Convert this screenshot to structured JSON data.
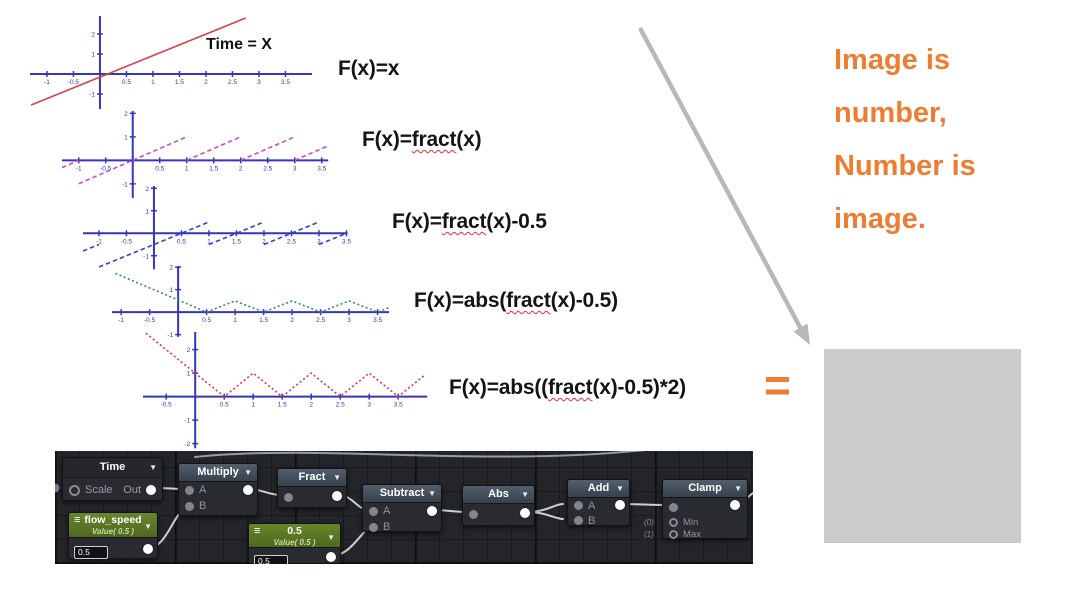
{
  "quote": {
    "lines": [
      "Image is",
      "number,",
      "Number is",
      "image."
    ]
  },
  "equals_sign": "=",
  "formulas": [
    {
      "pre": "F(x)=x",
      "fract": "",
      "post": ""
    },
    {
      "pre": "F(x)=",
      "fract": "fract",
      "post": "(x)"
    },
    {
      "pre": "F(x)=",
      "fract": "fract",
      "post": "(x)-0.5"
    },
    {
      "pre": "F(x)=abs(",
      "fract": "fract",
      "post": "(x)-0.5)"
    },
    {
      "pre": "F(x)=abs((",
      "fract": "fract",
      "post": "(x)-0.5)*2)"
    }
  ],
  "chart_data": [
    {
      "type": "line",
      "title": "F(x)=x",
      "annotation": "Time = X",
      "color": "#d04545",
      "line_style": "solid",
      "xlim": [
        -1.32,
        4.0
      ],
      "ylim": [
        -1.75,
        2.9
      ],
      "x_ticks": [
        -1,
        -0.5,
        0.5,
        1,
        1.5,
        2,
        2.5,
        3,
        3.5
      ],
      "y_ticks": [
        2,
        1,
        -1
      ],
      "segments": [
        [
          [
            -1.3,
            -1.55
          ],
          [
            2.75,
            2.8
          ]
        ]
      ]
    },
    {
      "type": "line",
      "title": "F(x)=fract(x)",
      "color": "#c44fc4",
      "line_style": "dashed",
      "xlim": [
        -1.31,
        3.62
      ],
      "ylim": [
        -1.6,
        2.1
      ],
      "x_ticks": [
        -1,
        -0.5,
        0.5,
        1,
        1.5,
        2,
        2.5,
        3,
        3.5
      ],
      "y_ticks": [
        2,
        1,
        -1
      ],
      "segments": [
        [
          [
            -1.31,
            -0.31
          ],
          [
            -1,
            0
          ]
        ],
        [
          [
            -1,
            -1
          ],
          [
            0,
            0
          ]
        ],
        [
          [
            0,
            0
          ],
          [
            1,
            1
          ]
        ],
        [
          [
            1,
            0
          ],
          [
            2,
            1
          ]
        ],
        [
          [
            2,
            0
          ],
          [
            3,
            1
          ]
        ],
        [
          [
            3,
            0
          ],
          [
            3.6,
            0.6
          ]
        ]
      ]
    },
    {
      "type": "line",
      "title": "F(x)=fract(x)-0.5",
      "color": "#3b3bd0",
      "line_style": "dashed",
      "xlim": [
        -1.29,
        3.52
      ],
      "ylim": [
        -1.6,
        2.1
      ],
      "x_ticks": [
        -1,
        -0.5,
        0.5,
        1,
        1.5,
        2,
        2.5,
        3,
        3.5
      ],
      "y_ticks": [
        2,
        1,
        -1
      ],
      "segments": [
        [
          [
            -1.29,
            -0.79
          ],
          [
            -1,
            -0.5
          ]
        ],
        [
          [
            -1,
            -1.5
          ],
          [
            1,
            0.5
          ]
        ],
        [
          [
            1,
            -0.5
          ],
          [
            2,
            0.5
          ]
        ],
        [
          [
            2,
            -0.5
          ],
          [
            3,
            0.5
          ]
        ],
        [
          [
            3,
            -0.5
          ],
          [
            3.5,
            0
          ]
        ]
      ]
    },
    {
      "type": "line",
      "title": "F(x)=abs(fract(x)-0.5)",
      "color": "#2f8f62",
      "line_style": "dotted",
      "xlim": [
        -1.16,
        3.7
      ],
      "ylim": [
        -1.1,
        2.05
      ],
      "x_ticks": [
        -1,
        -0.5,
        0.5,
        1,
        1.5,
        2,
        2.5,
        3,
        3.5
      ],
      "y_ticks": [
        2,
        1,
        -1
      ],
      "segments": [
        [
          [
            -1.1,
            1.72
          ],
          [
            0.5,
            0
          ],
          [
            1,
            0.5
          ],
          [
            1.5,
            0
          ],
          [
            2,
            0.5
          ],
          [
            2.5,
            0
          ],
          [
            3,
            0.5
          ],
          [
            3.5,
            0
          ],
          [
            3.7,
            0.2
          ]
        ]
      ]
    },
    {
      "type": "line",
      "title": "F(x)=abs((fract(x)-0.5)*2)",
      "color": "#d23b3b",
      "line_style": "dotted",
      "xlim": [
        -0.9,
        4.0
      ],
      "ylim": [
        -2.2,
        2.75
      ],
      "x_ticks": [
        -0.5,
        0.5,
        1,
        1.5,
        2,
        2.5,
        3,
        3.5
      ],
      "y_ticks": [
        2,
        1,
        -1,
        -2
      ],
      "segments": [
        [
          [
            -0.85,
            2.7
          ],
          [
            0.5,
            0
          ],
          [
            1,
            1
          ],
          [
            1.5,
            0
          ],
          [
            2,
            1
          ],
          [
            2.5,
            0
          ],
          [
            3,
            1
          ],
          [
            3.5,
            0
          ],
          [
            3.95,
            0.9
          ]
        ]
      ]
    }
  ],
  "node_editor": {
    "time": {
      "title": "Time",
      "scale_label": "Scale",
      "out_label": "Out"
    },
    "multiply": {
      "title": "Multiply",
      "a": "A",
      "b": "B"
    },
    "fract": {
      "title": "Fract"
    },
    "subtract": {
      "title": "Subtract",
      "a": "A",
      "b": "B"
    },
    "abs": {
      "title": "Abs"
    },
    "add": {
      "title": "Add",
      "a": "A",
      "b": "B"
    },
    "clamp": {
      "title": "Clamp",
      "min_badge": "(0)",
      "min_label": "Min",
      "max_badge": "(1)",
      "max_label": "Max"
    },
    "flow_speed": {
      "title": "flow_speed",
      "subtitle": "Value( 0.5 )",
      "field_value": "0.5"
    },
    "half": {
      "title": "0.5",
      "subtitle": "Value( 0.5 )",
      "field_value": "0.5"
    }
  },
  "icons": {
    "chevron_down": "▼",
    "menu": "≡"
  },
  "colors": {
    "accent_orange": "#ED7D31",
    "axis_blue": "#3535c0",
    "arrow_gray": "#b8b8b8",
    "swatch_gray": "#cbcbcb",
    "editor_bg": "#242529",
    "value_node_green": "#67862c",
    "math_header_blue": "#515e6c"
  }
}
